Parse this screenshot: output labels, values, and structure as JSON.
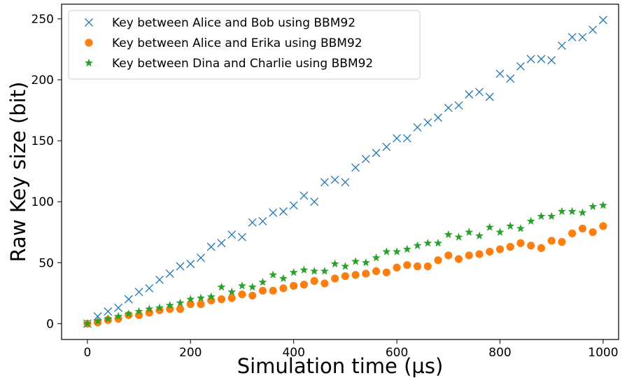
{
  "chart_data": {
    "type": "scatter",
    "xlabel": "Simulation time (µs)",
    "ylabel": "Raw Key size (bit)",
    "xlim": [
      -50,
      1030
    ],
    "ylim": [
      -13,
      262
    ],
    "xticks": [
      0,
      200,
      400,
      600,
      800,
      1000
    ],
    "yticks": [
      0,
      50,
      100,
      150,
      200,
      250
    ],
    "grid": false,
    "legend_position": "upper-left",
    "series": [
      {
        "name": "Key between Alice and Bob using BBM92",
        "marker": "x",
        "color": "#1f77b4",
        "x": [
          0,
          20,
          40,
          60,
          80,
          100,
          120,
          140,
          160,
          180,
          200,
          220,
          240,
          260,
          280,
          300,
          320,
          340,
          360,
          380,
          400,
          420,
          440,
          460,
          480,
          500,
          520,
          540,
          560,
          580,
          600,
          620,
          640,
          660,
          680,
          700,
          720,
          740,
          760,
          780,
          800,
          820,
          840,
          860,
          880,
          900,
          920,
          940,
          960,
          980,
          1000
        ],
        "y": [
          0,
          6,
          10,
          13,
          20,
          26,
          29,
          36,
          41,
          47,
          49,
          54,
          63,
          66,
          73,
          71,
          83,
          84,
          91,
          92,
          97,
          105,
          100,
          116,
          118,
          116,
          128,
          135,
          140,
          145,
          152,
          152,
          161,
          165,
          169,
          177,
          179,
          188,
          190,
          186,
          205,
          201,
          211,
          217,
          217,
          216,
          228,
          235,
          235,
          241,
          249
        ]
      },
      {
        "name": "Key between Alice and Erika using BBM92",
        "marker": "circle",
        "color": "#ff7f0e",
        "x": [
          0,
          20,
          40,
          60,
          80,
          100,
          120,
          140,
          160,
          180,
          200,
          220,
          240,
          260,
          280,
          300,
          320,
          340,
          360,
          380,
          400,
          420,
          440,
          460,
          480,
          500,
          520,
          540,
          560,
          580,
          600,
          620,
          640,
          660,
          680,
          700,
          720,
          740,
          760,
          780,
          800,
          820,
          840,
          860,
          880,
          900,
          920,
          940,
          960,
          980,
          1000
        ],
        "y": [
          0,
          1,
          3,
          4,
          7,
          7,
          9,
          11,
          12,
          12,
          16,
          16,
          19,
          20,
          21,
          24,
          23,
          27,
          27,
          29,
          31,
          32,
          35,
          33,
          37,
          39,
          40,
          41,
          43,
          42,
          46,
          48,
          47,
          47,
          52,
          56,
          53,
          56,
          57,
          59,
          61,
          63,
          66,
          64,
          62,
          68,
          67,
          74,
          78,
          75,
          80
        ]
      },
      {
        "name": "Key between Dina and Charlie using BBM92",
        "marker": "star",
        "color": "#2ca02c",
        "x": [
          0,
          20,
          40,
          60,
          80,
          100,
          120,
          140,
          160,
          180,
          200,
          220,
          240,
          260,
          280,
          300,
          320,
          340,
          360,
          380,
          400,
          420,
          440,
          460,
          480,
          500,
          520,
          540,
          560,
          580,
          600,
          620,
          640,
          660,
          680,
          700,
          720,
          740,
          760,
          780,
          800,
          820,
          840,
          860,
          880,
          900,
          920,
          940,
          960,
          980,
          1000
        ],
        "y": [
          0,
          2,
          4,
          6,
          8,
          10,
          12,
          13,
          15,
          17,
          20,
          21,
          22,
          30,
          26,
          31,
          30,
          34,
          40,
          37,
          42,
          44,
          43,
          43,
          49,
          47,
          51,
          50,
          54,
          59,
          59,
          61,
          64,
          66,
          66,
          73,
          71,
          75,
          72,
          79,
          75,
          80,
          78,
          84,
          88,
          88,
          92,
          92,
          91,
          96,
          97
        ]
      }
    ]
  }
}
